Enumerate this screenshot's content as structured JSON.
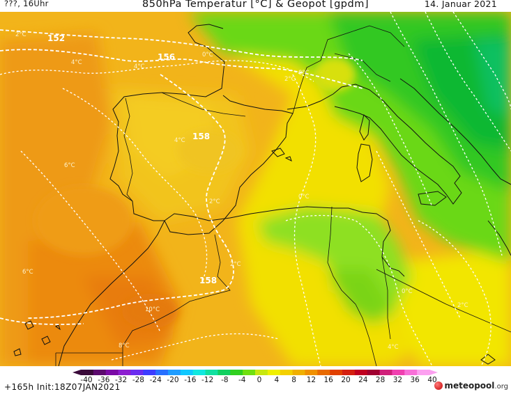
{
  "header": {
    "left": "???, 16Uhr",
    "title": "850hPa Temperatur [°C] & Geopot [gpdm]",
    "date": "14. Januar 2021"
  },
  "contour_labels": {
    "geopot": [
      "152",
      "156",
      "158",
      "158"
    ],
    "temp": [
      "2°C",
      "4°C",
      "4°C",
      "0°C",
      "0°C",
      "2°C",
      "4°C",
      "6°C",
      "0°C",
      "2°C",
      "6°C",
      "10°C",
      "8°C",
      "0°C",
      "2°C",
      "4°C",
      "2°C"
    ]
  },
  "colorbar": {
    "ticks": [
      "-40",
      "-36",
      "-32",
      "-28",
      "-24",
      "-20",
      "-16",
      "-12",
      "-8",
      "-4",
      "0",
      "4",
      "8",
      "12",
      "16",
      "20",
      "24",
      "28",
      "32",
      "36",
      "40"
    ],
    "colors": [
      "#3a0a3a",
      "#5c0a6e",
      "#7a0aa6",
      "#8c1ed0",
      "#6a2cf0",
      "#3c3cff",
      "#2870ff",
      "#1e9cff",
      "#10c8ff",
      "#10e8e0",
      "#10e0a0",
      "#10d060",
      "#30d020",
      "#70e010",
      "#c8e810",
      "#f0f000",
      "#f4d000",
      "#f0b000",
      "#f09000",
      "#e86a00",
      "#e04000",
      "#d42010",
      "#c00020",
      "#a00030",
      "#d0207a",
      "#f040b0",
      "#f870d8",
      "#fca0f0"
    ]
  },
  "footer": {
    "left": "+165h  Init:18Z07JAN2021",
    "logo_main": "meteopool",
    "logo_suffix": ".org"
  }
}
